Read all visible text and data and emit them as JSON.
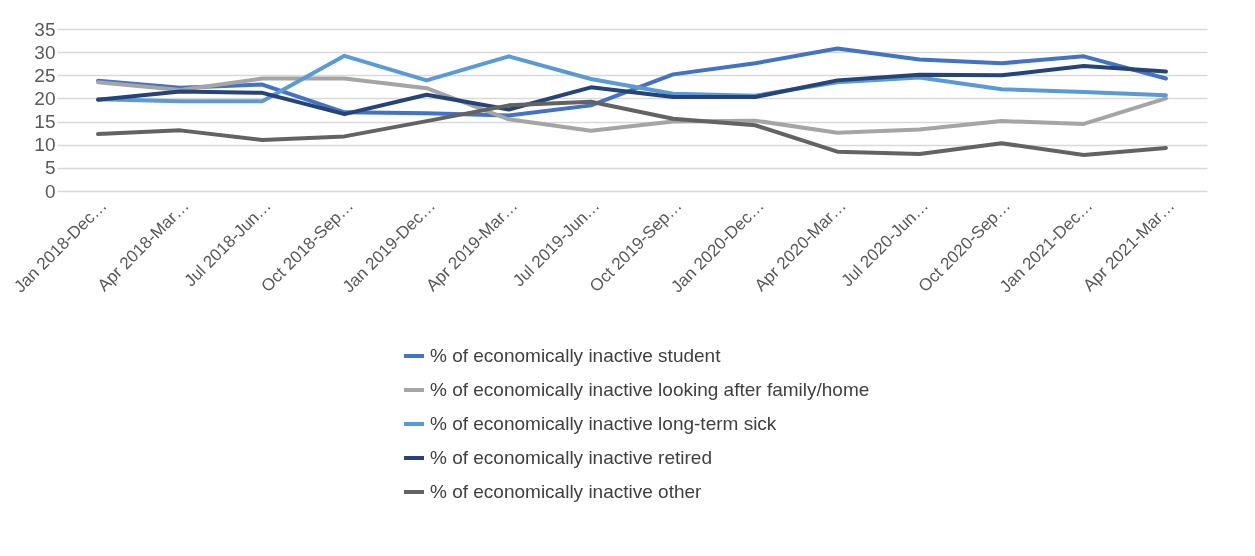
{
  "chart_data": {
    "type": "line",
    "categories": [
      "Jan 2018-Dec…",
      "Apr 2018-Mar…",
      "Jul 2018-Jun…",
      "Oct 2018-Sep…",
      "Jan 2019-Dec…",
      "Apr 2019-Mar…",
      "Jul 2019-Jun…",
      "Oct 2019-Sep…",
      "Jan 2020-Dec…",
      "Apr 2020-Mar…",
      "Jul 2020-Jun…",
      "Oct 2020-Sep…",
      "Jan 2021-Dec…",
      "Apr 2021-Mar…"
    ],
    "ylim": [
      0,
      35
    ],
    "yticks": [
      0,
      5,
      10,
      15,
      20,
      25,
      30,
      35
    ],
    "grid": "y",
    "legend": "bottom",
    "marker": "none",
    "line_style": "solid",
    "series": [
      {
        "name": "% of economically inactive student",
        "color": "#4472c4",
        "values": [
          23.8,
          22.3,
          23.0,
          17.0,
          16.8,
          16.3,
          18.5,
          25.2,
          27.6,
          30.8,
          28.4,
          27.6,
          29.1,
          24.3
        ]
      },
      {
        "name": "% of economically inactive looking after family/home",
        "color": "#a5a5a5",
        "values": [
          23.5,
          21.8,
          24.3,
          24.3,
          22.2,
          15.5,
          13.0,
          15.0,
          15.2,
          12.6,
          13.3,
          15.1,
          14.5,
          20.0
        ]
      },
      {
        "name": "% of economically inactive long-term sick",
        "color": "#5b9bd5",
        "values": [
          19.8,
          19.4,
          19.4,
          29.2,
          23.9,
          29.1,
          24.2,
          21.0,
          20.6,
          23.5,
          24.5,
          22.0,
          21.4,
          20.7
        ]
      },
      {
        "name": "% of economically inactive retired",
        "color": "#264478",
        "values": [
          19.7,
          21.5,
          21.2,
          16.6,
          20.8,
          17.6,
          22.4,
          20.3,
          20.3,
          23.9,
          25.1,
          25.0,
          27.0,
          25.8
        ]
      },
      {
        "name": "% of economically inactive other",
        "color": "#636363",
        "values": [
          12.3,
          13.1,
          11.0,
          11.8,
          15.1,
          18.5,
          19.3,
          15.6,
          14.2,
          8.5,
          8.0,
          10.3,
          7.8,
          9.3
        ]
      }
    ]
  }
}
